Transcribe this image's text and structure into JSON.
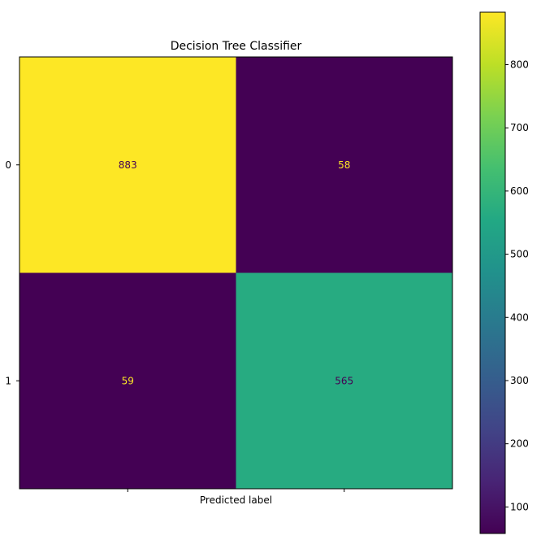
{
  "chart_data": {
    "type": "heatmap",
    "title": "Decision Tree Classifier",
    "xlabel": "Predicted label",
    "ylabel": "",
    "x_tick_labels": [
      "",
      ""
    ],
    "y_tick_labels": [
      "0",
      "1"
    ],
    "matrix": [
      [
        883,
        58
      ],
      [
        59,
        565
      ]
    ],
    "colormap": "viridis",
    "colorbar": {
      "range": [
        58,
        883
      ],
      "ticks": [
        100,
        200,
        300,
        400,
        500,
        600,
        700,
        800
      ]
    },
    "cell_text_colors": {
      "light_text": "#fde725",
      "dark_text": "#440154"
    }
  }
}
